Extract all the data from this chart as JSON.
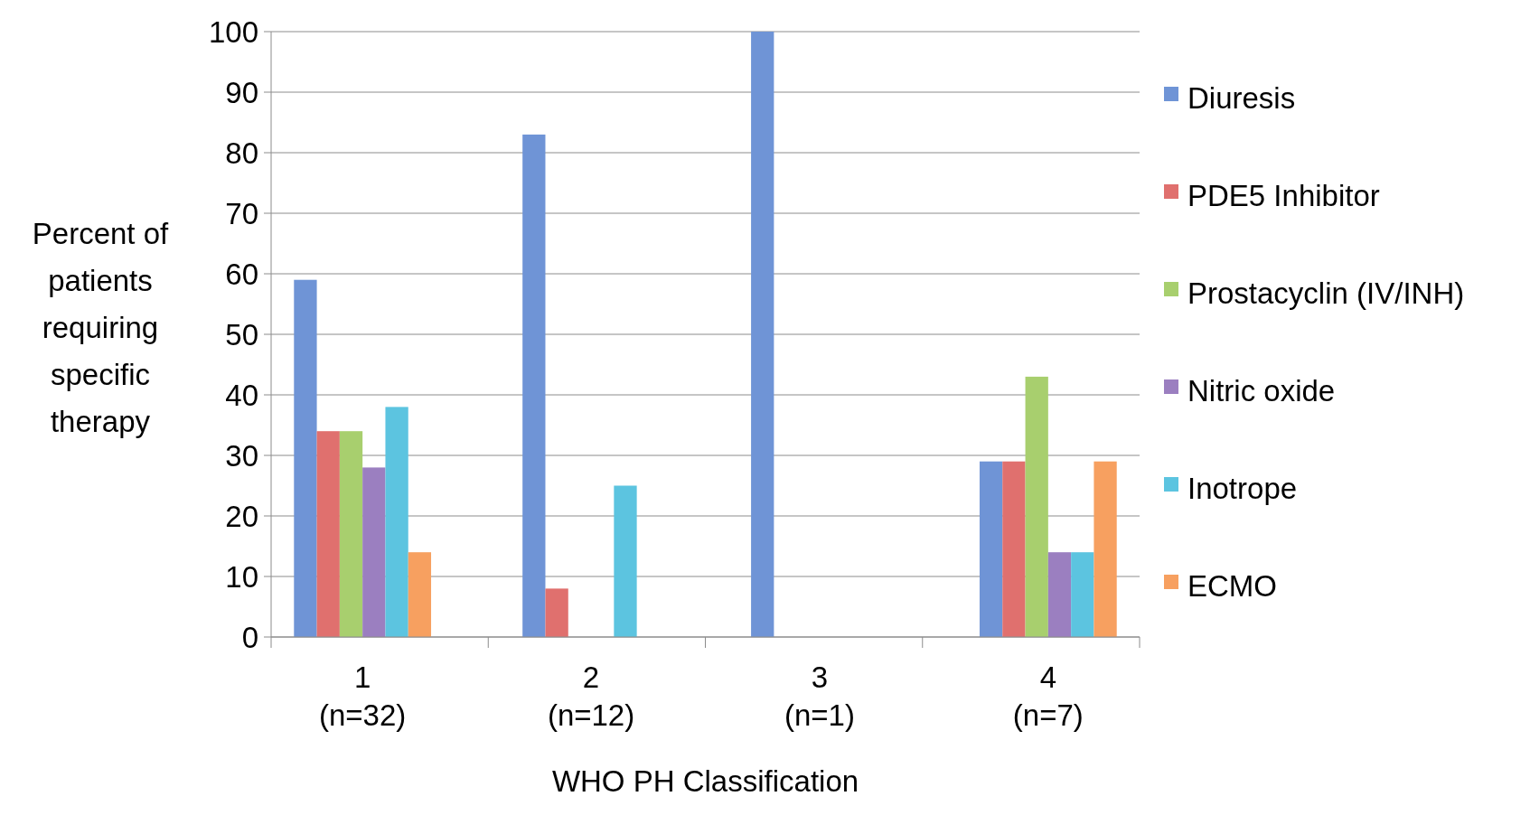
{
  "chart_data": {
    "type": "bar",
    "categories": [
      "1\n(n=32)",
      "2\n(n=12)",
      "3\n(n=1)",
      "4\n(n=7)"
    ],
    "xlabel": "WHO PH Classification",
    "ylabel": "Percent of\npatients\nrequiring\nspecific\ntherapy",
    "series": [
      {
        "name": "Diuresis",
        "color": "#6f94d6",
        "values": [
          59,
          83,
          100,
          29
        ]
      },
      {
        "name": "PDE5 Inhibitor",
        "color": "#e0706e",
        "values": [
          34,
          8,
          0,
          29
        ]
      },
      {
        "name": "Prostacyclin (IV/INH)",
        "color": "#a8cf6e",
        "values": [
          34,
          0,
          0,
          43
        ]
      },
      {
        "name": "Nitric oxide",
        "color": "#9b7fc0",
        "values": [
          28,
          0,
          0,
          14
        ]
      },
      {
        "name": "Inotrope",
        "color": "#5cc4e0",
        "values": [
          38,
          25,
          0,
          14
        ]
      },
      {
        "name": "ECMO",
        "color": "#f7a060",
        "values": [
          14,
          0,
          0,
          29
        ]
      }
    ],
    "ylim": [
      0,
      100
    ],
    "yticks": [
      0,
      10,
      20,
      30,
      40,
      50,
      60,
      70,
      80,
      90,
      100
    ],
    "grid": "y",
    "legend": "right"
  }
}
